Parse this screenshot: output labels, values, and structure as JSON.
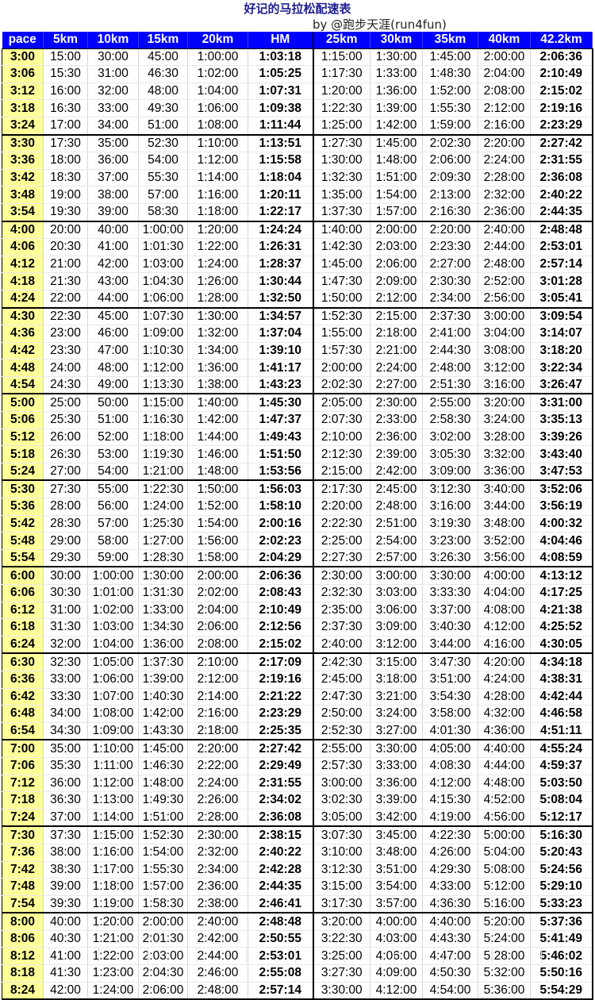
{
  "title": "好记的马拉松配速表",
  "byline": "by @跑步天涯(run4fun)",
  "columns": [
    "pace",
    "5km",
    "10km",
    "15km",
    "20km",
    "HM",
    "25km",
    "30km",
    "35km",
    "40km",
    "42.2km"
  ],
  "rows": [
    [
      "3:00",
      "15:00",
      "30:00",
      "45:00",
      "1:00:00",
      "1:03:18",
      "1:15:00",
      "1:30:00",
      "1:45:00",
      "2:00:00",
      "2:06:36"
    ],
    [
      "3:06",
      "15:30",
      "31:00",
      "46:30",
      "1:02:00",
      "1:05:25",
      "1:17:30",
      "1:33:00",
      "1:48:30",
      "2:04:00",
      "2:10:49"
    ],
    [
      "3:12",
      "16:00",
      "32:00",
      "48:00",
      "1:04:00",
      "1:07:31",
      "1:20:00",
      "1:36:00",
      "1:52:00",
      "2:08:00",
      "2:15:02"
    ],
    [
      "3:18",
      "16:30",
      "33:00",
      "49:30",
      "1:06:00",
      "1:09:38",
      "1:22:30",
      "1:39:00",
      "1:55:30",
      "2:12:00",
      "2:19:16"
    ],
    [
      "3:24",
      "17:00",
      "34:00",
      "51:00",
      "1:08:00",
      "1:11:44",
      "1:25:00",
      "1:42:00",
      "1:59:00",
      "2:16:00",
      "2:23:29"
    ],
    [
      "3:30",
      "17:30",
      "35:00",
      "52:30",
      "1:10:00",
      "1:13:51",
      "1:27:30",
      "1:45:00",
      "2:02:30",
      "2:20:00",
      "2:27:42"
    ],
    [
      "3:36",
      "18:00",
      "36:00",
      "54:00",
      "1:12:00",
      "1:15:58",
      "1:30:00",
      "1:48:00",
      "2:06:00",
      "2:24:00",
      "2:31:55"
    ],
    [
      "3:42",
      "18:30",
      "37:00",
      "55:30",
      "1:14:00",
      "1:18:04",
      "1:32:30",
      "1:51:00",
      "2:09:30",
      "2:28:00",
      "2:36:08"
    ],
    [
      "3:48",
      "19:00",
      "38:00",
      "57:00",
      "1:16:00",
      "1:20:11",
      "1:35:00",
      "1:54:00",
      "2:13:00",
      "2:32:00",
      "2:40:22"
    ],
    [
      "3:54",
      "19:30",
      "39:00",
      "58:30",
      "1:18:00",
      "1:22:17",
      "1:37:30",
      "1:57:00",
      "2:16:30",
      "2:36:00",
      "2:44:35"
    ],
    [
      "4:00",
      "20:00",
      "40:00",
      "1:00:00",
      "1:20:00",
      "1:24:24",
      "1:40:00",
      "2:00:00",
      "2:20:00",
      "2:40:00",
      "2:48:48"
    ],
    [
      "4:06",
      "20:30",
      "41:00",
      "1:01:30",
      "1:22:00",
      "1:26:31",
      "1:42:30",
      "2:03:00",
      "2:23:30",
      "2:44:00",
      "2:53:01"
    ],
    [
      "4:12",
      "21:00",
      "42:00",
      "1:03:00",
      "1:24:00",
      "1:28:37",
      "1:45:00",
      "2:06:00",
      "2:27:00",
      "2:48:00",
      "2:57:14"
    ],
    [
      "4:18",
      "21:30",
      "43:00",
      "1:04:30",
      "1:26:00",
      "1:30:44",
      "1:47:30",
      "2:09:00",
      "2:30:30",
      "2:52:00",
      "3:01:28"
    ],
    [
      "4:24",
      "22:00",
      "44:00",
      "1:06:00",
      "1:28:00",
      "1:32:50",
      "1:50:00",
      "2:12:00",
      "2:34:00",
      "2:56:00",
      "3:05:41"
    ],
    [
      "4:30",
      "22:30",
      "45:00",
      "1:07:30",
      "1:30:00",
      "1:34:57",
      "1:52:30",
      "2:15:00",
      "2:37:30",
      "3:00:00",
      "3:09:54"
    ],
    [
      "4:36",
      "23:00",
      "46:00",
      "1:09:00",
      "1:32:00",
      "1:37:04",
      "1:55:00",
      "2:18:00",
      "2:41:00",
      "3:04:00",
      "3:14:07"
    ],
    [
      "4:42",
      "23:30",
      "47:00",
      "1:10:30",
      "1:34:00",
      "1:39:10",
      "1:57:30",
      "2:21:00",
      "2:44:30",
      "3:08:00",
      "3:18:20"
    ],
    [
      "4:48",
      "24:00",
      "48:00",
      "1:12:00",
      "1:36:00",
      "1:41:17",
      "2:00:00",
      "2:24:00",
      "2:48:00",
      "3:12:00",
      "3:22:34"
    ],
    [
      "4:54",
      "24:30",
      "49:00",
      "1:13:30",
      "1:38:00",
      "1:43:23",
      "2:02:30",
      "2:27:00",
      "2:51:30",
      "3:16:00",
      "3:26:47"
    ],
    [
      "5:00",
      "25:00",
      "50:00",
      "1:15:00",
      "1:40:00",
      "1:45:30",
      "2:05:00",
      "2:30:00",
      "2:55:00",
      "3:20:00",
      "3:31:00"
    ],
    [
      "5:06",
      "25:30",
      "51:00",
      "1:16:30",
      "1:42:00",
      "1:47:37",
      "2:07:30",
      "2:33:00",
      "2:58:30",
      "3:24:00",
      "3:35:13"
    ],
    [
      "5:12",
      "26:00",
      "52:00",
      "1:18:00",
      "1:44:00",
      "1:49:43",
      "2:10:00",
      "2:36:00",
      "3:02:00",
      "3:28:00",
      "3:39:26"
    ],
    [
      "5:18",
      "26:30",
      "53:00",
      "1:19:30",
      "1:46:00",
      "1:51:50",
      "2:12:30",
      "2:39:00",
      "3:05:30",
      "3:32:00",
      "3:43:40"
    ],
    [
      "5:24",
      "27:00",
      "54:00",
      "1:21:00",
      "1:48:00",
      "1:53:56",
      "2:15:00",
      "2:42:00",
      "3:09:00",
      "3:36:00",
      "3:47:53"
    ],
    [
      "5:30",
      "27:30",
      "55:00",
      "1:22:30",
      "1:50:00",
      "1:56:03",
      "2:17:30",
      "2:45:00",
      "3:12:30",
      "3:40:00",
      "3:52:06"
    ],
    [
      "5:36",
      "28:00",
      "56:00",
      "1:24:00",
      "1:52:00",
      "1:58:10",
      "2:20:00",
      "2:48:00",
      "3:16:00",
      "3:44:00",
      "3:56:19"
    ],
    [
      "5:42",
      "28:30",
      "57:00",
      "1:25:30",
      "1:54:00",
      "2:00:16",
      "2:22:30",
      "2:51:00",
      "3:19:30",
      "3:48:00",
      "4:00:32"
    ],
    [
      "5:48",
      "29:00",
      "58:00",
      "1:27:00",
      "1:56:00",
      "2:02:23",
      "2:25:00",
      "2:54:00",
      "3:23:00",
      "3:52:00",
      "4:04:46"
    ],
    [
      "5:54",
      "29:30",
      "59:00",
      "1:28:30",
      "1:58:00",
      "2:04:29",
      "2:27:30",
      "2:57:00",
      "3:26:30",
      "3:56:00",
      "4:08:59"
    ],
    [
      "6:00",
      "30:00",
      "1:00:00",
      "1:30:00",
      "2:00:00",
      "2:06:36",
      "2:30:00",
      "3:00:00",
      "3:30:00",
      "4:00:00",
      "4:13:12"
    ],
    [
      "6:06",
      "30:30",
      "1:01:00",
      "1:31:30",
      "2:02:00",
      "2:08:43",
      "2:32:30",
      "3:03:00",
      "3:33:30",
      "4:04:00",
      "4:17:25"
    ],
    [
      "6:12",
      "31:00",
      "1:02:00",
      "1:33:00",
      "2:04:00",
      "2:10:49",
      "2:35:00",
      "3:06:00",
      "3:37:00",
      "4:08:00",
      "4:21:38"
    ],
    [
      "6:18",
      "31:30",
      "1:03:00",
      "1:34:30",
      "2:06:00",
      "2:12:56",
      "2:37:30",
      "3:09:00",
      "3:40:30",
      "4:12:00",
      "4:25:52"
    ],
    [
      "6:24",
      "32:00",
      "1:04:00",
      "1:36:00",
      "2:08:00",
      "2:15:02",
      "2:40:00",
      "3:12:00",
      "3:44:00",
      "4:16:00",
      "4:30:05"
    ],
    [
      "6:30",
      "32:30",
      "1:05:00",
      "1:37:30",
      "2:10:00",
      "2:17:09",
      "2:42:30",
      "3:15:00",
      "3:47:30",
      "4:20:00",
      "4:34:18"
    ],
    [
      "6:36",
      "33:00",
      "1:06:00",
      "1:39:00",
      "2:12:00",
      "2:19:16",
      "2:45:00",
      "3:18:00",
      "3:51:00",
      "4:24:00",
      "4:38:31"
    ],
    [
      "6:42",
      "33:30",
      "1:07:00",
      "1:40:30",
      "2:14:00",
      "2:21:22",
      "2:47:30",
      "3:21:00",
      "3:54:30",
      "4:28:00",
      "4:42:44"
    ],
    [
      "6:48",
      "34:00",
      "1:08:00",
      "1:42:00",
      "2:16:00",
      "2:23:29",
      "2:50:00",
      "3:24:00",
      "3:58:00",
      "4:32:00",
      "4:46:58"
    ],
    [
      "6:54",
      "34:30",
      "1:09:00",
      "1:43:30",
      "2:18:00",
      "2:25:35",
      "2:52:30",
      "3:27:00",
      "4:01:30",
      "4:36:00",
      "4:51:11"
    ],
    [
      "7:00",
      "35:00",
      "1:10:00",
      "1:45:00",
      "2:20:00",
      "2:27:42",
      "2:55:00",
      "3:30:00",
      "4:05:00",
      "4:40:00",
      "4:55:24"
    ],
    [
      "7:06",
      "35:30",
      "1:11:00",
      "1:46:30",
      "2:22:00",
      "2:29:49",
      "2:57:30",
      "3:33:00",
      "4:08:30",
      "4:44:00",
      "4:59:37"
    ],
    [
      "7:12",
      "36:00",
      "1:12:00",
      "1:48:00",
      "2:24:00",
      "2:31:55",
      "3:00:00",
      "3:36:00",
      "4:12:00",
      "4:48:00",
      "5:03:50"
    ],
    [
      "7:18",
      "36:30",
      "1:13:00",
      "1:49:30",
      "2:26:00",
      "2:34:02",
      "3:02:30",
      "3:39:00",
      "4:15:30",
      "4:52:00",
      "5:08:04"
    ],
    [
      "7:24",
      "37:00",
      "1:14:00",
      "1:51:00",
      "2:28:00",
      "2:36:08",
      "3:05:00",
      "3:42:00",
      "4:19:00",
      "4:56:00",
      "5:12:17"
    ],
    [
      "7:30",
      "37:30",
      "1:15:00",
      "1:52:30",
      "2:30:00",
      "2:38:15",
      "3:07:30",
      "3:45:00",
      "4:22:30",
      "5:00:00",
      "5:16:30"
    ],
    [
      "7:36",
      "38:00",
      "1:16:00",
      "1:54:00",
      "2:32:00",
      "2:40:22",
      "3:10:00",
      "3:48:00",
      "4:26:00",
      "5:04:00",
      "5:20:43"
    ],
    [
      "7:42",
      "38:30",
      "1:17:00",
      "1:55:30",
      "2:34:00",
      "2:42:28",
      "3:12:30",
      "3:51:00",
      "4:29:30",
      "5:08:00",
      "5:24:56"
    ],
    [
      "7:48",
      "39:00",
      "1:18:00",
      "1:57:00",
      "2:36:00",
      "2:44:35",
      "3:15:00",
      "3:54:00",
      "4:33:00",
      "5:12:00",
      "5:29:10"
    ],
    [
      "7:54",
      "39:30",
      "1:19:00",
      "1:58:30",
      "2:38:00",
      "2:46:41",
      "3:17:30",
      "3:57:00",
      "4:36:30",
      "5:16:00",
      "5:33:23"
    ],
    [
      "8:00",
      "40:00",
      "1:20:00",
      "2:00:00",
      "2:40:00",
      "2:48:48",
      "3:20:00",
      "4:00:00",
      "4:40:00",
      "5:20:00",
      "5:37:36"
    ],
    [
      "8:06",
      "40:30",
      "1:21:00",
      "2:01:30",
      "2:42:00",
      "2:50:55",
      "3:22:30",
      "4:03:00",
      "4:43:30",
      "5:24:00",
      "5:41:49"
    ],
    [
      "8:12",
      "41:00",
      "1:22:00",
      "2:03:00",
      "2:44:00",
      "2:53:01",
      "3:25:00",
      "4:06:00",
      "4:47:00",
      "5:28:00",
      "5:46:02"
    ],
    [
      "8:18",
      "41:30",
      "1:23:00",
      "2:04:30",
      "2:46:00",
      "2:55:08",
      "3:27:30",
      "4:09:00",
      "4:50:30",
      "5:32:00",
      "5:50:16"
    ],
    [
      "8:24",
      "42:00",
      "1:24:00",
      "2:06:00",
      "2:48:00",
      "2:57:14",
      "3:30:00",
      "4:12:00",
      "4:54:00",
      "5:36:00",
      "5:54:29"
    ]
  ]
}
